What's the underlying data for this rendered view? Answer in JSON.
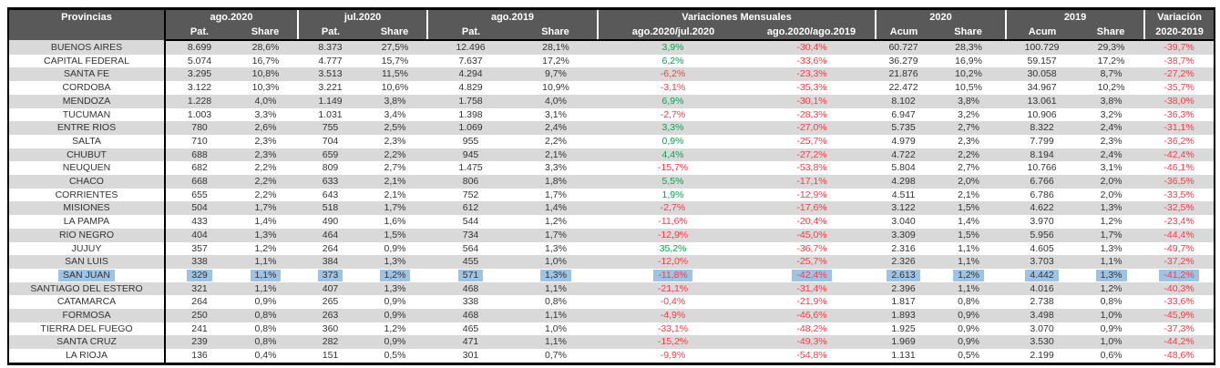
{
  "styles": {
    "header_bg": "#595959",
    "header_text": "#ffffff",
    "alt_row_bg": "#d9d9d9",
    "positive_value": "#00A651",
    "negative_value": "#FB3B47",
    "row_highlight": "#9DC3E6"
  },
  "chart_data": {
    "type": "table",
    "header": {
      "col1": "Provincias",
      "groups": [
        "ago.2020",
        "jul.2020",
        "ago.2019",
        "Variaciones Mensuales",
        "2020",
        "2019"
      ],
      "variacion": "Variación",
      "variacion_sub": "2020-2019",
      "subs": [
        "Pat.",
        "Share",
        "Pat.",
        "Share",
        "Pat.",
        "Share",
        "ago.2020/jul.2020",
        "ago.2020/ago.2019",
        "Acum",
        "Share",
        "Acum",
        "Share"
      ]
    },
    "rows": [
      {
        "province": "BUENOS AIRES",
        "values": [
          "8.699",
          "28,6%",
          "8.373",
          "27,5%",
          "12.496",
          "28,1%",
          "3,9%",
          "-30,4%",
          "60.727",
          "28,3%",
          "100.729",
          "29,3%",
          "-39,7%"
        ],
        "highlighted": false
      },
      {
        "province": "CAPITAL FEDERAL",
        "values": [
          "5.074",
          "16,7%",
          "4.777",
          "15,7%",
          "7.637",
          "17,2%",
          "6,2%",
          "-33,6%",
          "36.279",
          "16,9%",
          "59.157",
          "17,2%",
          "-38,7%"
        ],
        "highlighted": false
      },
      {
        "province": "SANTA FE",
        "values": [
          "3.295",
          "10,8%",
          "3.513",
          "11,5%",
          "4.294",
          "9,7%",
          "-6,2%",
          "-23,3%",
          "21.876",
          "10,2%",
          "30.058",
          "8,7%",
          "-27,2%"
        ],
        "highlighted": false
      },
      {
        "province": "CORDOBA",
        "values": [
          "3.122",
          "10,3%",
          "3.221",
          "10,6%",
          "4.829",
          "10,9%",
          "-3,1%",
          "-35,3%",
          "22.472",
          "10,5%",
          "34.967",
          "10,2%",
          "-35,7%"
        ],
        "highlighted": false
      },
      {
        "province": "MENDOZA",
        "values": [
          "1.228",
          "4,0%",
          "1.149",
          "3,8%",
          "1.758",
          "4,0%",
          "6,9%",
          "-30,1%",
          "8.102",
          "3,8%",
          "13.061",
          "3,8%",
          "-38,0%"
        ],
        "highlighted": false
      },
      {
        "province": "TUCUMAN",
        "values": [
          "1.003",
          "3,3%",
          "1.031",
          "3,4%",
          "1.398",
          "3,1%",
          "-2,7%",
          "-28,3%",
          "6.947",
          "3,2%",
          "10.906",
          "3,2%",
          "-36,3%"
        ],
        "highlighted": false
      },
      {
        "province": "ENTRE RIOS",
        "values": [
          "780",
          "2,6%",
          "755",
          "2,5%",
          "1.069",
          "2,4%",
          "3,3%",
          "-27,0%",
          "5.735",
          "2,7%",
          "8.322",
          "2,4%",
          "-31,1%"
        ],
        "highlighted": false
      },
      {
        "province": "SALTA",
        "values": [
          "710",
          "2,3%",
          "704",
          "2,3%",
          "955",
          "2,2%",
          "0,9%",
          "-25,7%",
          "4.979",
          "2,3%",
          "7.799",
          "2,3%",
          "-36,2%"
        ],
        "highlighted": false
      },
      {
        "province": "CHUBUT",
        "values": [
          "688",
          "2,3%",
          "659",
          "2,2%",
          "945",
          "2,1%",
          "4,4%",
          "-27,2%",
          "4.722",
          "2,2%",
          "8.194",
          "2,4%",
          "-42,4%"
        ],
        "highlighted": false
      },
      {
        "province": "NEUQUEN",
        "values": [
          "682",
          "2,2%",
          "809",
          "2,7%",
          "1.475",
          "3,3%",
          "-15,7%",
          "-53,8%",
          "5.804",
          "2,7%",
          "10.766",
          "3,1%",
          "-46,1%"
        ],
        "highlighted": false
      },
      {
        "province": "CHACO",
        "values": [
          "668",
          "2,2%",
          "633",
          "2,1%",
          "806",
          "1,8%",
          "5,5%",
          "-17,1%",
          "4.298",
          "2,0%",
          "6.766",
          "2,0%",
          "-36,5%"
        ],
        "highlighted": false
      },
      {
        "province": "CORRIENTES",
        "values": [
          "655",
          "2,2%",
          "643",
          "2,1%",
          "752",
          "1,7%",
          "1,9%",
          "-12,9%",
          "4.511",
          "2,1%",
          "6.786",
          "2,0%",
          "-33,5%"
        ],
        "highlighted": false
      },
      {
        "province": "MISIONES",
        "values": [
          "504",
          "1,7%",
          "518",
          "1,7%",
          "612",
          "1,4%",
          "-2,7%",
          "-17,6%",
          "3.122",
          "1,5%",
          "4.622",
          "1,3%",
          "-32,5%"
        ],
        "highlighted": false
      },
      {
        "province": "LA PAMPA",
        "values": [
          "433",
          "1,4%",
          "490",
          "1,6%",
          "544",
          "1,2%",
          "-11,6%",
          "-20,4%",
          "3.040",
          "1,4%",
          "3.970",
          "1,2%",
          "-23,4%"
        ],
        "highlighted": false
      },
      {
        "province": "RIO NEGRO",
        "values": [
          "404",
          "1,3%",
          "464",
          "1,5%",
          "734",
          "1,7%",
          "-12,9%",
          "-45,0%",
          "3.309",
          "1,5%",
          "5.956",
          "1,7%",
          "-44,4%"
        ],
        "highlighted": false
      },
      {
        "province": "JUJUY",
        "values": [
          "357",
          "1,2%",
          "264",
          "0,9%",
          "564",
          "1,3%",
          "35,2%",
          "-36,7%",
          "2.316",
          "1,1%",
          "4.605",
          "1,3%",
          "-49,7%"
        ],
        "highlighted": false
      },
      {
        "province": "SAN LUIS",
        "values": [
          "338",
          "1,1%",
          "384",
          "1,3%",
          "455",
          "1,0%",
          "-12,0%",
          "-25,7%",
          "2.326",
          "1,1%",
          "3.703",
          "1,1%",
          "-37,2%"
        ],
        "highlighted": false
      },
      {
        "province": "SAN JUAN",
        "values": [
          "329",
          "1,1%",
          "373",
          "1,2%",
          "571",
          "1,3%",
          "-11,8%",
          "-42,4%",
          "2.613",
          "1,2%",
          "4.442",
          "1,3%",
          "-41,2%"
        ],
        "highlighted": true
      },
      {
        "province": "SANTIAGO DEL ESTERO",
        "values": [
          "321",
          "1,1%",
          "407",
          "1,3%",
          "468",
          "1,1%",
          "-21,1%",
          "-31,4%",
          "2.396",
          "1,1%",
          "4.016",
          "1,2%",
          "-40,3%"
        ],
        "highlighted": false
      },
      {
        "province": "CATAMARCA",
        "values": [
          "264",
          "0,9%",
          "265",
          "0,9%",
          "338",
          "0,8%",
          "-0,4%",
          "-21,9%",
          "1.817",
          "0,8%",
          "2.738",
          "0,8%",
          "-33,6%"
        ],
        "highlighted": false
      },
      {
        "province": "FORMOSA",
        "values": [
          "250",
          "0,8%",
          "263",
          "0,9%",
          "468",
          "1,1%",
          "-4,9%",
          "-46,6%",
          "1.893",
          "0,9%",
          "3.498",
          "1,0%",
          "-45,9%"
        ],
        "highlighted": false
      },
      {
        "province": "TIERRA DEL FUEGO",
        "values": [
          "241",
          "0,8%",
          "360",
          "1,2%",
          "465",
          "1,0%",
          "-33,1%",
          "-48,2%",
          "1.925",
          "0,9%",
          "3.070",
          "0,9%",
          "-37,3%"
        ],
        "highlighted": false
      },
      {
        "province": "SANTA CRUZ",
        "values": [
          "239",
          "0,8%",
          "282",
          "0,9%",
          "471",
          "1,1%",
          "-15,2%",
          "-49,3%",
          "1.969",
          "0,9%",
          "3.530",
          "1,0%",
          "-44,2%"
        ],
        "highlighted": false
      },
      {
        "province": "LA RIOJA",
        "values": [
          "136",
          "0,4%",
          "151",
          "0,5%",
          "301",
          "0,7%",
          "-9,9%",
          "-54,8%",
          "1.131",
          "0,5%",
          "2.199",
          "0,6%",
          "-48,6%"
        ],
        "highlighted": false
      }
    ]
  }
}
